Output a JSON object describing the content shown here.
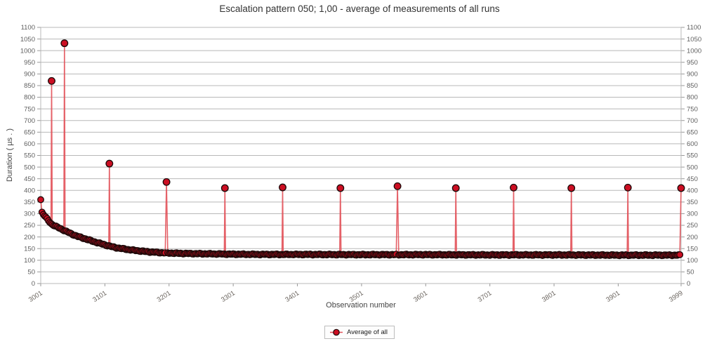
{
  "chart_data": {
    "type": "line",
    "title": "Escalation pattern 050; 1,00 - average of measurements of all runs",
    "xlabel": "Observation number",
    "ylabel": "Duration ( µs . )",
    "xlim": [
      3001,
      3999
    ],
    "ylim": [
      0,
      1100
    ],
    "y_tick_step": 50,
    "x_ticks": [
      3001,
      3101,
      3201,
      3301,
      3401,
      3501,
      3601,
      3701,
      3801,
      3901,
      3999
    ],
    "grid": true,
    "legend": {
      "position": "bottom",
      "entries": [
        {
          "label": "Average of all",
          "marker": "filled-circle-on-line",
          "color": "#cc0e22"
        }
      ]
    },
    "series": [
      {
        "name": "Average of all",
        "description": "Decaying average curve with periodic spikes above a ~122-125 µs baseline",
        "sample_step": 2,
        "baseline_jitter": 2.2,
        "baseline_anchors": [
          [
            3001,
            360
          ],
          [
            3002,
            312
          ],
          [
            3004,
            300
          ],
          [
            3008,
            288
          ],
          [
            3013,
            270
          ],
          [
            3018,
            255
          ],
          [
            3024,
            246
          ],
          [
            3030,
            238
          ],
          [
            3036,
            230
          ],
          [
            3043,
            221
          ],
          [
            3050,
            212
          ],
          [
            3058,
            203
          ],
          [
            3066,
            196
          ],
          [
            3075,
            188
          ],
          [
            3085,
            179
          ],
          [
            3095,
            171
          ],
          [
            3105,
            163
          ],
          [
            3115,
            156
          ],
          [
            3125,
            151
          ],
          [
            3140,
            145
          ],
          [
            3155,
            140
          ],
          [
            3170,
            136
          ],
          [
            3185,
            133
          ],
          [
            3200,
            131
          ],
          [
            3225,
            129
          ],
          [
            3250,
            128
          ],
          [
            3300,
            126
          ],
          [
            3350,
            125
          ],
          [
            3400,
            125
          ],
          [
            3500,
            124
          ],
          [
            3600,
            124
          ],
          [
            3700,
            123
          ],
          [
            3800,
            123
          ],
          [
            3900,
            122
          ],
          [
            3999,
            122
          ]
        ],
        "spikes": [
          [
            3018,
            870
          ],
          [
            3038,
            1032
          ],
          [
            3108,
            515
          ],
          [
            3197,
            436
          ],
          [
            3288,
            410
          ],
          [
            3378,
            413
          ],
          [
            3468,
            410
          ],
          [
            3557,
            418
          ],
          [
            3648,
            410
          ],
          [
            3738,
            412
          ],
          [
            3828,
            410
          ],
          [
            3916,
            412
          ],
          [
            3999,
            410
          ]
        ]
      }
    ],
    "colors": {
      "marker_fill": "#cc0e22",
      "marker_stroke": "#1d0a0a",
      "line": "#e25058",
      "grid": "#b8b8b8",
      "tick": "#999999",
      "y_tick_label": "#5f5f5f",
      "x_tick_label": "#6b655f",
      "title": "#333333",
      "axis_label": "#444444"
    }
  }
}
